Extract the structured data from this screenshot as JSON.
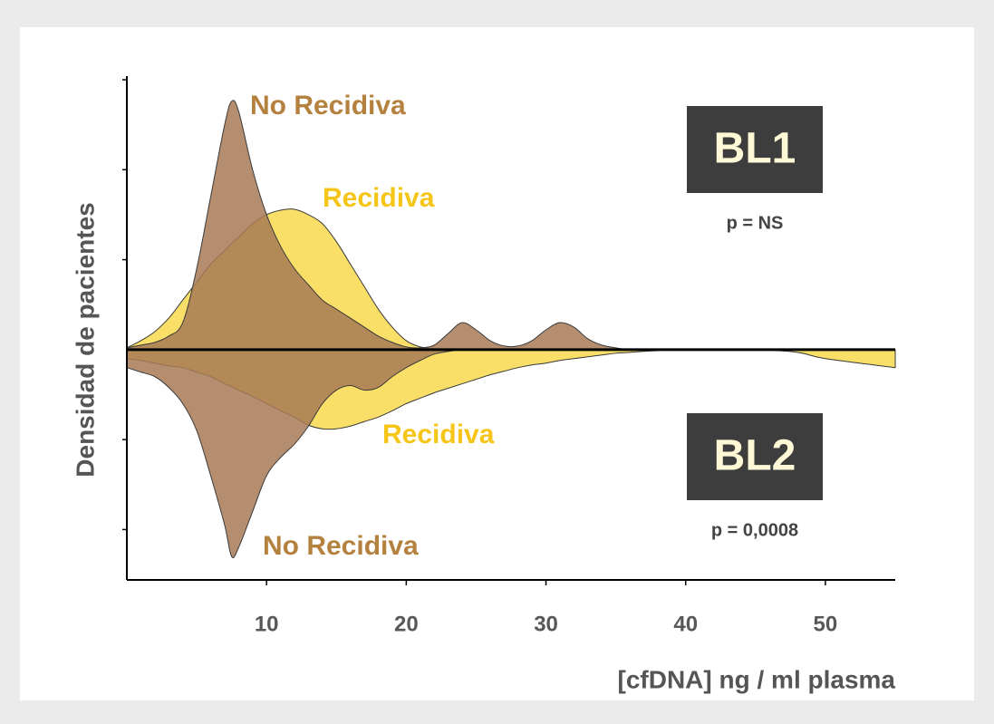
{
  "chart_data": {
    "type": "mirrored-density",
    "y_label": "Densidad de pacientes",
    "x_label": "[cfDNA] ng / ml plasma",
    "xlim": [
      0,
      55
    ],
    "xticks": [
      10,
      20,
      30,
      40,
      50
    ],
    "ylim": [
      -2.56,
      3
    ],
    "yticks": [
      -2,
      -1,
      0,
      1,
      2,
      3
    ],
    "x": [
      0,
      1,
      2,
      3,
      4,
      5,
      6,
      7,
      7.5,
      8,
      9,
      10,
      11,
      12,
      13,
      14,
      15,
      16,
      17,
      18,
      19,
      20,
      21,
      22,
      23,
      24,
      25,
      26,
      27,
      28,
      29,
      30,
      31,
      32,
      33,
      34,
      35,
      36,
      38,
      40,
      45,
      48,
      50,
      55
    ],
    "series": [
      {
        "name": "BL1 No Recidiva",
        "color": "#a87a56",
        "values": [
          0.02,
          0.05,
          0.08,
          0.15,
          0.3,
          0.9,
          1.7,
          2.5,
          2.76,
          2.65,
          2.0,
          1.5,
          1.15,
          0.9,
          0.72,
          0.55,
          0.45,
          0.35,
          0.25,
          0.15,
          0.08,
          0.03,
          0.02,
          0.05,
          0.18,
          0.3,
          0.22,
          0.1,
          0.04,
          0.04,
          0.1,
          0.22,
          0.3,
          0.25,
          0.12,
          0.05,
          0.02,
          0,
          0,
          0,
          0,
          0,
          0,
          0
        ]
      },
      {
        "name": "BL1 Recidiva",
        "color": "#f7d435",
        "values": [
          0.02,
          0.1,
          0.2,
          0.35,
          0.55,
          0.75,
          0.95,
          1.1,
          1.18,
          1.25,
          1.4,
          1.5,
          1.55,
          1.56,
          1.5,
          1.4,
          1.2,
          0.95,
          0.7,
          0.45,
          0.25,
          0.1,
          0.03,
          0.01,
          0,
          0,
          0,
          0,
          0,
          0,
          0,
          0,
          0,
          0,
          0,
          0,
          0,
          0,
          0,
          0,
          0,
          0,
          0,
          0
        ]
      },
      {
        "name": "BL2 Recidiva",
        "color": "#f7d435",
        "values": [
          -0.1,
          -0.12,
          -0.15,
          -0.18,
          -0.2,
          -0.25,
          -0.3,
          -0.38,
          -0.41,
          -0.45,
          -0.52,
          -0.6,
          -0.68,
          -0.75,
          -0.84,
          -0.88,
          -0.88,
          -0.85,
          -0.8,
          -0.75,
          -0.68,
          -0.6,
          -0.54,
          -0.48,
          -0.43,
          -0.38,
          -0.33,
          -0.28,
          -0.24,
          -0.2,
          -0.17,
          -0.15,
          -0.12,
          -0.1,
          -0.08,
          -0.06,
          -0.04,
          -0.03,
          -0.01,
          0,
          0,
          -0.03,
          -0.1,
          -0.2
        ]
      },
      {
        "name": "BL2 No Recidiva",
        "color": "#a87a56",
        "values": [
          -0.2,
          -0.25,
          -0.3,
          -0.42,
          -0.6,
          -0.9,
          -1.4,
          -1.95,
          -2.3,
          -2.2,
          -1.8,
          -1.4,
          -1.2,
          -1.05,
          -0.85,
          -0.6,
          -0.45,
          -0.4,
          -0.45,
          -0.42,
          -0.3,
          -0.2,
          -0.12,
          -0.05,
          -0.02,
          0,
          0,
          0,
          0,
          0,
          0,
          0,
          0,
          0,
          0,
          0,
          0,
          0,
          0,
          0,
          0,
          0,
          0,
          0
        ]
      }
    ],
    "annotations": [
      {
        "text": "No Recidiva",
        "color": "#b5813f"
      },
      {
        "text": "Recidiva",
        "color": "#f5c518"
      },
      {
        "text": "Recidiva",
        "color": "#f5c518"
      },
      {
        "text": "No Recidiva",
        "color": "#b5813f"
      }
    ],
    "panels": [
      {
        "label": "BL1",
        "p": "p = NS"
      },
      {
        "label": "BL2",
        "p": "p = 0,0008"
      }
    ]
  }
}
